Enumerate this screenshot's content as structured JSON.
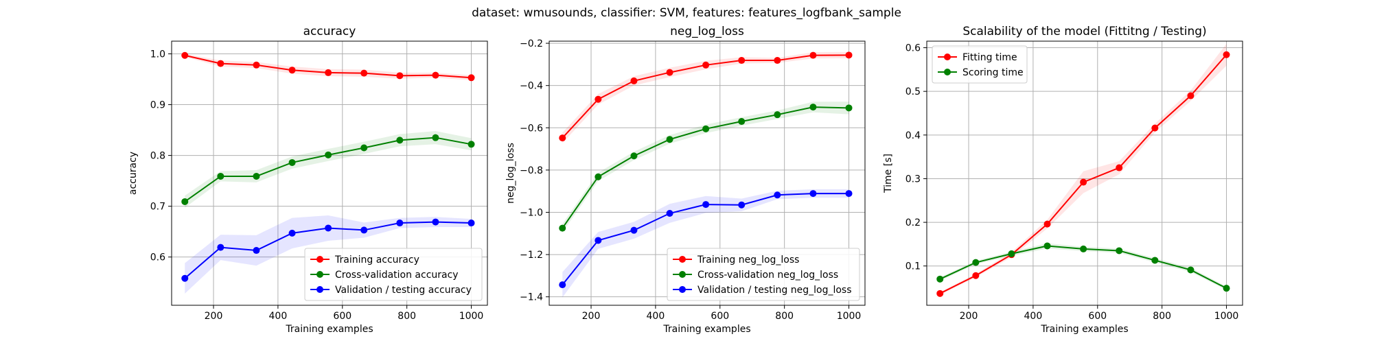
{
  "figure": {
    "suptitle": "dataset: wmusounds, classifier: SVM, features: features_logfbank_sample"
  },
  "colors": {
    "red": "#ff0000",
    "green": "#008000",
    "blue": "#0000ff",
    "grid": "#b0b0b0"
  },
  "chart_data": [
    {
      "type": "line",
      "title": "accuracy",
      "xlabel": "Training examples",
      "ylabel": "accuracy",
      "xlim": [
        70,
        1050
      ],
      "ylim": [
        0.505,
        1.025
      ],
      "xticks": [
        200,
        400,
        600,
        800,
        1000
      ],
      "yticks": [
        0.6,
        0.7,
        0.8,
        0.9,
        1.0
      ],
      "ytick_labels": [
        "0.6",
        "0.7",
        "0.8",
        "0.9",
        "1.0"
      ],
      "grid": true,
      "legend": "lower-right",
      "x": [
        111,
        222,
        333,
        444,
        556,
        667,
        778,
        889,
        1000
      ],
      "series": [
        {
          "name": "Training accuracy",
          "color": "#ff0000",
          "values": [
            0.997,
            0.981,
            0.978,
            0.968,
            0.963,
            0.962,
            0.957,
            0.958,
            0.953
          ],
          "std": [
            0.003,
            0.006,
            0.006,
            0.007,
            0.007,
            0.007,
            0.006,
            0.005,
            0.005
          ]
        },
        {
          "name": "Cross-validation accuracy",
          "color": "#008000",
          "values": [
            0.709,
            0.759,
            0.759,
            0.786,
            0.801,
            0.815,
            0.83,
            0.835,
            0.822
          ],
          "std": [
            0.012,
            0.01,
            0.012,
            0.012,
            0.012,
            0.012,
            0.012,
            0.013,
            0.012
          ]
        },
        {
          "name": "Validation / testing accuracy",
          "color": "#0000ff",
          "values": [
            0.558,
            0.619,
            0.613,
            0.647,
            0.657,
            0.653,
            0.667,
            0.669,
            0.667
          ],
          "std": [
            0.03,
            0.025,
            0.03,
            0.03,
            0.025,
            0.015,
            0.01,
            0.01,
            0.008
          ]
        }
      ]
    },
    {
      "type": "line",
      "title": "neg_log_loss",
      "xlabel": "Training examples",
      "ylabel": "neg_log_loss",
      "xlim": [
        70,
        1050
      ],
      "ylim": [
        -1.44,
        -0.19
      ],
      "xticks": [
        200,
        400,
        600,
        800,
        1000
      ],
      "yticks": [
        -1.4,
        -1.2,
        -1.0,
        -0.8,
        -0.6,
        -0.4,
        -0.2
      ],
      "ytick_labels": [
        "−1.4",
        "−1.2",
        "−1.0",
        "−0.8",
        "−0.6",
        "−0.4",
        "−0.2"
      ],
      "grid": true,
      "legend": "lower-right",
      "x": [
        111,
        222,
        333,
        444,
        556,
        667,
        778,
        889,
        1000
      ],
      "series": [
        {
          "name": "Training neg_log_loss",
          "color": "#ff0000",
          "values": [
            -0.648,
            -0.465,
            -0.378,
            -0.338,
            -0.303,
            -0.281,
            -0.281,
            -0.257,
            -0.256
          ],
          "std": [
            0.025,
            0.025,
            0.022,
            0.022,
            0.02,
            0.015,
            0.012,
            0.015,
            0.015
          ]
        },
        {
          "name": "Cross-validation neg_log_loss",
          "color": "#008000",
          "values": [
            -1.075,
            -0.832,
            -0.733,
            -0.655,
            -0.605,
            -0.57,
            -0.538,
            -0.502,
            -0.506
          ],
          "std": [
            0.02,
            0.02,
            0.02,
            0.02,
            0.02,
            0.02,
            0.02,
            0.025,
            0.03
          ]
        },
        {
          "name": "Validation / testing neg_log_loss",
          "color": "#0000ff",
          "values": [
            -1.343,
            -1.133,
            -1.085,
            -1.005,
            -0.963,
            -0.965,
            -0.918,
            -0.911,
            -0.911
          ],
          "std": [
            0.06,
            0.04,
            0.04,
            0.045,
            0.04,
            0.03,
            0.02,
            0.02,
            0.02
          ]
        }
      ]
    },
    {
      "type": "line",
      "title": "Scalability of the model (Fittitng / Testing)",
      "xlabel": "Training examples",
      "ylabel": "Time [s]",
      "xlim": [
        70,
        1050
      ],
      "ylim": [
        0.01,
        0.615
      ],
      "xticks": [
        200,
        400,
        600,
        800,
        1000
      ],
      "yticks": [
        0.1,
        0.2,
        0.3,
        0.4,
        0.5,
        0.6
      ],
      "ytick_labels": [
        "0.1",
        "0.2",
        "0.3",
        "0.4",
        "0.5",
        "0.6"
      ],
      "grid": true,
      "legend": "upper-left",
      "x": [
        111,
        222,
        333,
        444,
        556,
        667,
        778,
        889,
        1000
      ],
      "series": [
        {
          "name": "Fitting time",
          "color": "#ff0000",
          "values": [
            0.037,
            0.078,
            0.126,
            0.196,
            0.292,
            0.325,
            0.416,
            0.49,
            0.584
          ],
          "std": [
            0.003,
            0.004,
            0.006,
            0.01,
            0.025,
            0.015,
            0.01,
            0.012,
            0.025
          ]
        },
        {
          "name": "Scoring time",
          "color": "#008000",
          "values": [
            0.07,
            0.108,
            0.128,
            0.146,
            0.139,
            0.135,
            0.113,
            0.091,
            0.049
          ],
          "std": [
            0.004,
            0.004,
            0.005,
            0.006,
            0.005,
            0.005,
            0.005,
            0.005,
            0.004
          ]
        }
      ]
    }
  ]
}
